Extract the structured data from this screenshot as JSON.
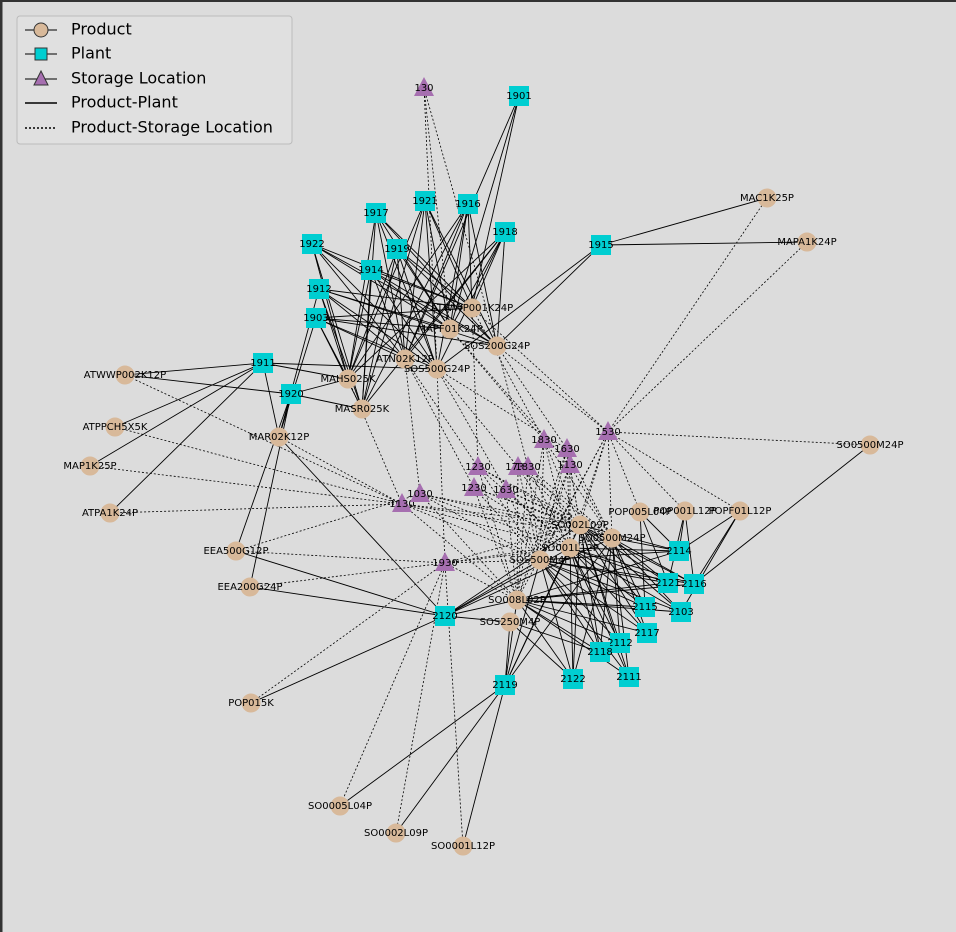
{
  "legend": [
    "Product",
    "Plant",
    "Storage Location",
    "Product-Plant",
    "Product-Storage Location"
  ],
  "products": [
    "MAC1K25P",
    "MAPA1K24P",
    "ATWWP002K12P",
    "ATPPCH5X5K",
    "MAP1K25P",
    "ATPA1K24P",
    "MAHS025K",
    "MASR025K",
    "MAR02K12P",
    "EEA500G12P",
    "EEA200G24P",
    "POP015K",
    "SO0005L04P",
    "SO0002L09P",
    "SO0001L12P",
    "SO0500M24P",
    "POP005L04P",
    "POP001L12P",
    "POPF01L12P",
    "SOS250M4P",
    "ATWWP001K24P",
    "MAPF01K24P",
    "SOS200G24P",
    "ATN02K12P",
    "SOS500G24P",
    "SO002L09P",
    "SO0500M24P",
    "SO001L12P",
    "SOS500M4P",
    "SO008L02P"
  ],
  "plants": [
    "1901",
    "1917",
    "1921",
    "1916",
    "1918",
    "1922",
    "1919",
    "1915",
    "1914",
    "1912",
    "1903",
    "1911",
    "1920",
    "2114",
    "2121",
    "2116",
    "2115",
    "2103",
    "2117",
    "2112",
    "2118",
    "2111",
    "2122",
    "2120",
    "2119"
  ],
  "storage_locations": [
    "130",
    "1530",
    "1830",
    "1630",
    "1230",
    "1730",
    "1830",
    "1130",
    "1230",
    "1630",
    "1130",
    "1030",
    "1930"
  ]
}
